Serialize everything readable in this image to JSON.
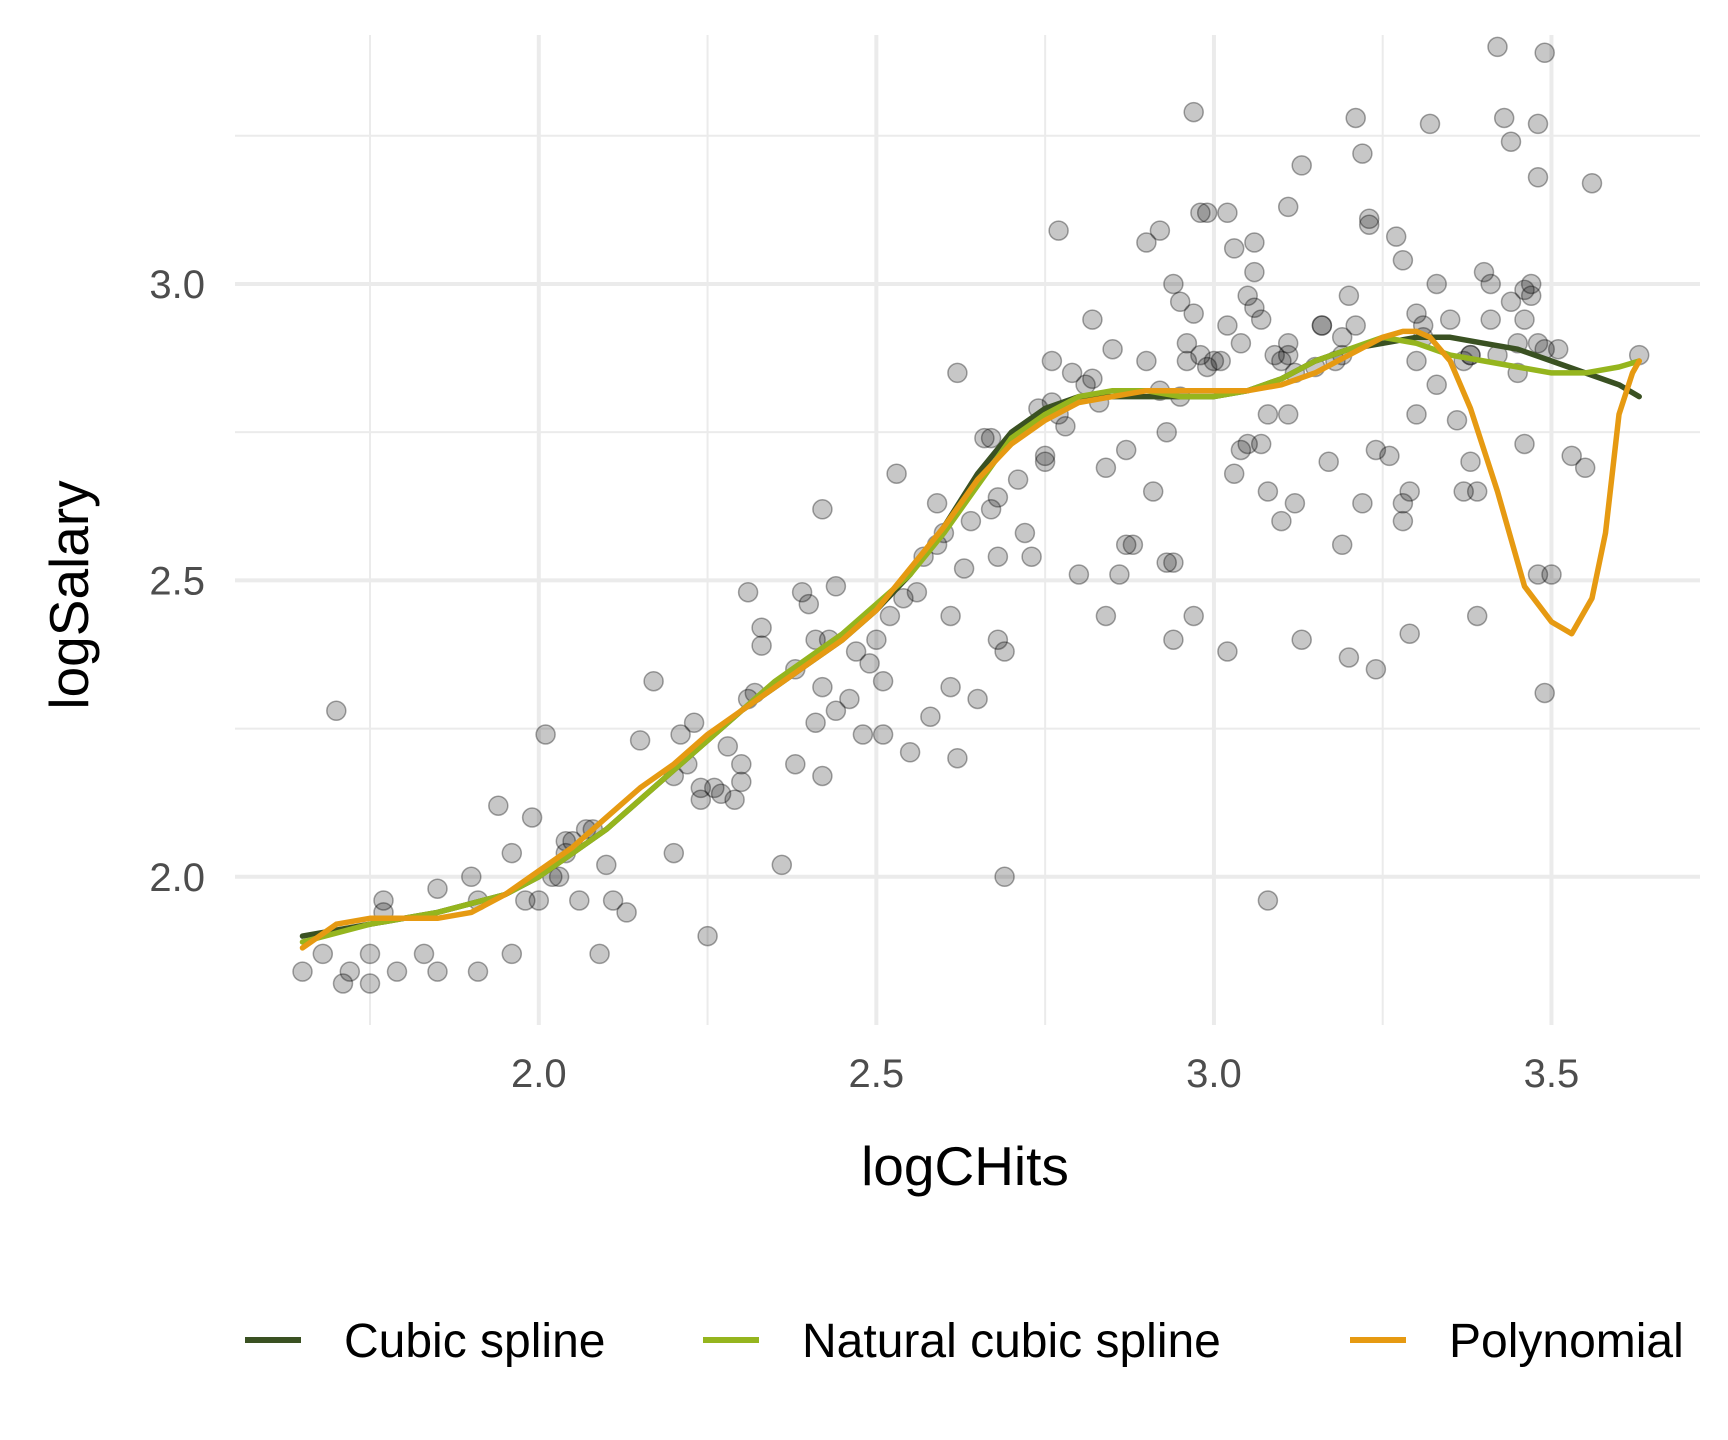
{
  "chart_data": {
    "type": "scatter",
    "title": "",
    "xlabel": "logCHits",
    "ylabel": "logSalary",
    "xlim": [
      1.55,
      3.72
    ],
    "ylim": [
      1.75,
      3.42
    ],
    "x_ticks": [
      2.0,
      2.5,
      3.0,
      3.5
    ],
    "x_tick_labels": [
      "2.0",
      "2.5",
      "3.0",
      "3.5"
    ],
    "x_minor_ticks": [
      1.75,
      2.25,
      2.75,
      3.25
    ],
    "y_ticks": [
      2.0,
      2.5,
      3.0
    ],
    "y_tick_labels": [
      "2.0",
      "2.5",
      "3.0"
    ],
    "y_minor_ticks": [
      2.25,
      2.75,
      3.25
    ],
    "grid": true,
    "legend_position": "bottom",
    "points": [
      [
        1.65,
        1.84
      ],
      [
        1.68,
        1.87
      ],
      [
        1.7,
        2.28
      ],
      [
        1.71,
        1.82
      ],
      [
        1.72,
        1.84
      ],
      [
        1.75,
        1.82
      ],
      [
        1.75,
        1.87
      ],
      [
        1.77,
        1.96
      ],
      [
        1.77,
        1.94
      ],
      [
        1.79,
        1.84
      ],
      [
        1.83,
        1.87
      ],
      [
        1.85,
        1.98
      ],
      [
        1.85,
        1.84
      ],
      [
        1.9,
        2.0
      ],
      [
        1.91,
        1.84
      ],
      [
        1.91,
        1.96
      ],
      [
        1.94,
        2.12
      ],
      [
        1.96,
        2.04
      ],
      [
        1.96,
        1.87
      ],
      [
        1.98,
        1.96
      ],
      [
        1.99,
        2.1
      ],
      [
        2.0,
        1.96
      ],
      [
        2.01,
        2.24
      ],
      [
        2.02,
        2.0
      ],
      [
        2.03,
        2.0
      ],
      [
        2.04,
        2.04
      ],
      [
        2.04,
        2.06
      ],
      [
        2.05,
        2.06
      ],
      [
        2.06,
        1.96
      ],
      [
        2.07,
        2.08
      ],
      [
        2.08,
        2.08
      ],
      [
        2.09,
        1.87
      ],
      [
        2.1,
        2.02
      ],
      [
        2.11,
        1.96
      ],
      [
        2.13,
        1.94
      ],
      [
        2.15,
        2.23
      ],
      [
        2.17,
        2.33
      ],
      [
        2.2,
        2.04
      ],
      [
        2.2,
        2.17
      ],
      [
        2.21,
        2.24
      ],
      [
        2.22,
        2.19
      ],
      [
        2.23,
        2.26
      ],
      [
        2.24,
        2.15
      ],
      [
        2.24,
        2.13
      ],
      [
        2.25,
        1.9
      ],
      [
        2.26,
        2.15
      ],
      [
        2.27,
        2.14
      ],
      [
        2.28,
        2.22
      ],
      [
        2.29,
        2.13
      ],
      [
        2.3,
        2.16
      ],
      [
        2.3,
        2.19
      ],
      [
        2.31,
        2.48
      ],
      [
        2.31,
        2.3
      ],
      [
        2.32,
        2.31
      ],
      [
        2.33,
        2.42
      ],
      [
        2.33,
        2.39
      ],
      [
        2.36,
        2.02
      ],
      [
        2.38,
        2.35
      ],
      [
        2.38,
        2.19
      ],
      [
        2.39,
        2.48
      ],
      [
        2.4,
        2.46
      ],
      [
        2.41,
        2.4
      ],
      [
        2.41,
        2.26
      ],
      [
        2.42,
        2.17
      ],
      [
        2.42,
        2.62
      ],
      [
        2.42,
        2.32
      ],
      [
        2.43,
        2.4
      ],
      [
        2.44,
        2.28
      ],
      [
        2.44,
        2.49
      ],
      [
        2.46,
        2.3
      ],
      [
        2.47,
        2.38
      ],
      [
        2.48,
        2.24
      ],
      [
        2.49,
        2.36
      ],
      [
        2.5,
        2.4
      ],
      [
        2.51,
        2.33
      ],
      [
        2.51,
        2.24
      ],
      [
        2.52,
        2.44
      ],
      [
        2.53,
        2.68
      ],
      [
        2.54,
        2.47
      ],
      [
        2.55,
        2.21
      ],
      [
        2.56,
        2.48
      ],
      [
        2.57,
        2.54
      ],
      [
        2.58,
        2.27
      ],
      [
        2.59,
        2.56
      ],
      [
        2.59,
        2.63
      ],
      [
        2.6,
        2.58
      ],
      [
        2.61,
        2.32
      ],
      [
        2.61,
        2.44
      ],
      [
        2.62,
        2.2
      ],
      [
        2.62,
        2.85
      ],
      [
        2.63,
        2.52
      ],
      [
        2.64,
        2.6
      ],
      [
        2.65,
        2.3
      ],
      [
        2.66,
        2.74
      ],
      [
        2.67,
        2.62
      ],
      [
        2.67,
        2.74
      ],
      [
        2.68,
        2.54
      ],
      [
        2.68,
        2.64
      ],
      [
        2.68,
        2.4
      ],
      [
        2.69,
        2.38
      ],
      [
        2.69,
        2.0
      ],
      [
        2.71,
        2.67
      ],
      [
        2.72,
        2.58
      ],
      [
        2.73,
        2.54
      ],
      [
        2.74,
        2.79
      ],
      [
        2.75,
        2.7
      ],
      [
        2.75,
        2.71
      ],
      [
        2.76,
        2.8
      ],
      [
        2.76,
        2.87
      ],
      [
        2.77,
        2.78
      ],
      [
        2.77,
        3.09
      ],
      [
        2.78,
        2.76
      ],
      [
        2.79,
        2.85
      ],
      [
        2.8,
        2.51
      ],
      [
        2.81,
        2.83
      ],
      [
        2.82,
        2.84
      ],
      [
        2.82,
        2.94
      ],
      [
        2.83,
        2.8
      ],
      [
        2.84,
        2.69
      ],
      [
        2.84,
        2.44
      ],
      [
        2.85,
        2.89
      ],
      [
        2.86,
        2.51
      ],
      [
        2.87,
        2.72
      ],
      [
        2.87,
        2.56
      ],
      [
        2.88,
        2.56
      ],
      [
        2.9,
        2.87
      ],
      [
        2.9,
        3.07
      ],
      [
        2.91,
        2.65
      ],
      [
        2.92,
        3.09
      ],
      [
        2.92,
        2.82
      ],
      [
        2.93,
        2.75
      ],
      [
        2.93,
        2.53
      ],
      [
        2.94,
        2.53
      ],
      [
        2.94,
        2.4
      ],
      [
        2.94,
        3.0
      ],
      [
        2.95,
        2.97
      ],
      [
        2.95,
        2.81
      ],
      [
        2.96,
        2.9
      ],
      [
        2.96,
        2.87
      ],
      [
        2.97,
        2.44
      ],
      [
        2.97,
        2.95
      ],
      [
        2.97,
        3.29
      ],
      [
        2.98,
        3.12
      ],
      [
        2.98,
        2.88
      ],
      [
        2.99,
        3.12
      ],
      [
        2.99,
        2.86
      ],
      [
        3.0,
        2.87
      ],
      [
        3.01,
        2.87
      ],
      [
        3.02,
        3.12
      ],
      [
        3.02,
        2.93
      ],
      [
        3.02,
        2.38
      ],
      [
        3.03,
        3.06
      ],
      [
        3.03,
        2.68
      ],
      [
        3.04,
        2.9
      ],
      [
        3.04,
        2.72
      ],
      [
        3.05,
        2.73
      ],
      [
        3.05,
        2.98
      ],
      [
        3.06,
        3.07
      ],
      [
        3.06,
        2.96
      ],
      [
        3.06,
        3.02
      ],
      [
        3.07,
        2.73
      ],
      [
        3.07,
        2.94
      ],
      [
        3.08,
        2.65
      ],
      [
        3.08,
        2.78
      ],
      [
        3.08,
        1.96
      ],
      [
        3.09,
        2.88
      ],
      [
        3.1,
        2.87
      ],
      [
        3.1,
        2.6
      ],
      [
        3.11,
        2.9
      ],
      [
        3.11,
        3.13
      ],
      [
        3.11,
        2.88
      ],
      [
        3.11,
        2.78
      ],
      [
        3.12,
        2.63
      ],
      [
        3.12,
        2.85
      ],
      [
        3.13,
        2.4
      ],
      [
        3.13,
        3.2
      ],
      [
        3.15,
        2.86
      ],
      [
        3.16,
        2.93
      ],
      [
        3.16,
        2.93
      ],
      [
        3.17,
        2.7
      ],
      [
        3.18,
        2.87
      ],
      [
        3.19,
        2.91
      ],
      [
        3.19,
        2.88
      ],
      [
        3.19,
        2.56
      ],
      [
        3.2,
        2.98
      ],
      [
        3.2,
        2.37
      ],
      [
        3.21,
        2.93
      ],
      [
        3.21,
        3.28
      ],
      [
        3.22,
        3.22
      ],
      [
        3.22,
        2.63
      ],
      [
        3.23,
        3.1
      ],
      [
        3.23,
        3.11
      ],
      [
        3.24,
        2.35
      ],
      [
        3.24,
        2.72
      ],
      [
        3.26,
        2.71
      ],
      [
        3.27,
        3.08
      ],
      [
        3.28,
        3.04
      ],
      [
        3.28,
        2.63
      ],
      [
        3.28,
        2.6
      ],
      [
        3.29,
        2.41
      ],
      [
        3.29,
        2.65
      ],
      [
        3.3,
        2.78
      ],
      [
        3.3,
        2.87
      ],
      [
        3.3,
        2.95
      ],
      [
        3.31,
        2.91
      ],
      [
        3.31,
        2.93
      ],
      [
        3.32,
        3.27
      ],
      [
        3.33,
        2.83
      ],
      [
        3.33,
        3.0
      ],
      [
        3.35,
        2.94
      ],
      [
        3.36,
        2.77
      ],
      [
        3.37,
        2.65
      ],
      [
        3.37,
        2.87
      ],
      [
        3.38,
        2.88
      ],
      [
        3.38,
        2.7
      ],
      [
        3.38,
        2.88
      ],
      [
        3.39,
        2.44
      ],
      [
        3.39,
        2.65
      ],
      [
        3.4,
        3.02
      ],
      [
        3.41,
        2.94
      ],
      [
        3.41,
        3.0
      ],
      [
        3.42,
        2.88
      ],
      [
        3.42,
        3.4
      ],
      [
        3.43,
        3.28
      ],
      [
        3.44,
        2.97
      ],
      [
        3.44,
        3.24
      ],
      [
        3.45,
        2.85
      ],
      [
        3.45,
        2.9
      ],
      [
        3.46,
        2.94
      ],
      [
        3.46,
        2.73
      ],
      [
        3.46,
        2.99
      ],
      [
        3.47,
        2.98
      ],
      [
        3.47,
        3.0
      ],
      [
        3.48,
        2.9
      ],
      [
        3.48,
        3.27
      ],
      [
        3.48,
        3.18
      ],
      [
        3.48,
        2.51
      ],
      [
        3.49,
        2.89
      ],
      [
        3.49,
        3.39
      ],
      [
        3.49,
        2.31
      ],
      [
        3.5,
        2.51
      ],
      [
        3.51,
        2.89
      ],
      [
        3.53,
        2.71
      ],
      [
        3.55,
        2.69
      ],
      [
        3.56,
        3.17
      ],
      [
        3.63,
        2.88
      ]
    ],
    "series": [
      {
        "name": "Cubic spline",
        "color": "#3a5122",
        "x": [
          1.65,
          1.75,
          1.85,
          1.95,
          2.0,
          2.05,
          2.1,
          2.15,
          2.2,
          2.25,
          2.3,
          2.35,
          2.4,
          2.45,
          2.5,
          2.55,
          2.6,
          2.65,
          2.7,
          2.75,
          2.8,
          2.85,
          2.9,
          2.95,
          3.0,
          3.05,
          3.1,
          3.15,
          3.2,
          3.25,
          3.3,
          3.35,
          3.4,
          3.45,
          3.5,
          3.55,
          3.6,
          3.63
        ],
        "y": [
          1.9,
          1.92,
          1.94,
          1.97,
          2.0,
          2.04,
          2.08,
          2.13,
          2.18,
          2.23,
          2.28,
          2.32,
          2.36,
          2.4,
          2.45,
          2.51,
          2.59,
          2.68,
          2.75,
          2.79,
          2.81,
          2.81,
          2.81,
          2.81,
          2.81,
          2.82,
          2.84,
          2.87,
          2.89,
          2.9,
          2.91,
          2.91,
          2.9,
          2.89,
          2.87,
          2.85,
          2.83,
          2.81
        ]
      },
      {
        "name": "Natural cubic spline",
        "color": "#95b51e",
        "x": [
          1.65,
          1.75,
          1.85,
          1.95,
          2.0,
          2.05,
          2.1,
          2.15,
          2.2,
          2.25,
          2.3,
          2.35,
          2.4,
          2.45,
          2.5,
          2.55,
          2.6,
          2.65,
          2.7,
          2.75,
          2.8,
          2.85,
          2.9,
          2.95,
          3.0,
          3.05,
          3.1,
          3.15,
          3.2,
          3.25,
          3.3,
          3.35,
          3.4,
          3.45,
          3.5,
          3.55,
          3.6,
          3.63
        ],
        "y": [
          1.89,
          1.92,
          1.94,
          1.97,
          2.0,
          2.04,
          2.08,
          2.13,
          2.18,
          2.23,
          2.28,
          2.33,
          2.37,
          2.41,
          2.46,
          2.51,
          2.58,
          2.66,
          2.74,
          2.78,
          2.81,
          2.82,
          2.82,
          2.81,
          2.81,
          2.82,
          2.84,
          2.87,
          2.89,
          2.91,
          2.9,
          2.88,
          2.87,
          2.86,
          2.85,
          2.85,
          2.86,
          2.87
        ]
      },
      {
        "name": "Polynomial",
        "color": "#e69a12",
        "x": [
          1.65,
          1.7,
          1.75,
          1.8,
          1.85,
          1.9,
          1.95,
          2.0,
          2.05,
          2.1,
          2.15,
          2.2,
          2.25,
          2.3,
          2.35,
          2.4,
          2.45,
          2.5,
          2.55,
          2.6,
          2.65,
          2.7,
          2.75,
          2.8,
          2.85,
          2.9,
          2.95,
          3.0,
          3.05,
          3.1,
          3.15,
          3.2,
          3.25,
          3.28,
          3.3,
          3.32,
          3.35,
          3.38,
          3.42,
          3.46,
          3.5,
          3.53,
          3.56,
          3.58,
          3.6,
          3.62,
          3.63
        ],
        "y": [
          1.88,
          1.92,
          1.93,
          1.93,
          1.93,
          1.94,
          1.97,
          2.01,
          2.05,
          2.1,
          2.15,
          2.19,
          2.24,
          2.28,
          2.32,
          2.36,
          2.4,
          2.45,
          2.52,
          2.59,
          2.67,
          2.73,
          2.77,
          2.8,
          2.81,
          2.82,
          2.82,
          2.82,
          2.82,
          2.83,
          2.85,
          2.88,
          2.91,
          2.92,
          2.92,
          2.91,
          2.87,
          2.79,
          2.65,
          2.49,
          2.43,
          2.41,
          2.47,
          2.58,
          2.78,
          2.85,
          2.87
        ]
      }
    ]
  }
}
